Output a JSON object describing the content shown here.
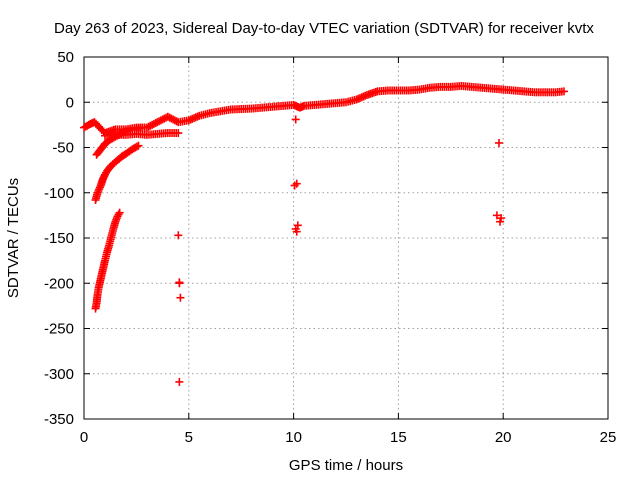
{
  "chart_data": {
    "type": "scatter",
    "title": "Day 263 of 2023, Sidereal Day-to-day VTEC variation (SDTVAR) for receiver kvtx",
    "xlabel": "GPS time / hours",
    "ylabel": "SDTVAR / TECUs",
    "xlim": [
      0,
      25
    ],
    "ylim": [
      -350,
      50
    ],
    "xticks": [
      0,
      5,
      10,
      15,
      20,
      25
    ],
    "xtick_labels": [
      "0",
      "5",
      "10",
      "15",
      "20",
      "25"
    ],
    "yticks": [
      50,
      0,
      -50,
      -100,
      -150,
      -200,
      -250,
      -300,
      -350
    ],
    "ytick_labels": [
      "50",
      "0",
      "-50",
      "-100",
      "-150",
      "-200",
      "-250",
      "-300",
      "-350"
    ],
    "grid": true,
    "marker": "plus",
    "color": "#ff0000",
    "series": [
      {
        "name": "main-track",
        "x": [
          0.0,
          0.3,
          0.5,
          1.0,
          1.5,
          2.0,
          2.5,
          3.0,
          3.5,
          4.0,
          4.5,
          5.0,
          5.5,
          6.0,
          6.5,
          7.0,
          8.0,
          9.0,
          9.5,
          10.0,
          10.3,
          10.5,
          11.0,
          11.5,
          12.0,
          12.5,
          13.0,
          13.5,
          14.0,
          14.5,
          15.0,
          15.5,
          16.0,
          16.5,
          17.0,
          17.5,
          18.0,
          18.5,
          19.0,
          19.5,
          20.0,
          20.5,
          21.0,
          21.5,
          22.0,
          22.5,
          22.9
        ],
        "y": [
          -28,
          -24,
          -22,
          -34,
          -30,
          -30,
          -28,
          -28,
          -22,
          -16,
          -22,
          -20,
          -15,
          -12,
          -10,
          -8,
          -7,
          -5,
          -4,
          -3,
          -6,
          -4,
          -3,
          -2,
          -1,
          0,
          3,
          8,
          12,
          13,
          13,
          13,
          14,
          16,
          17,
          17,
          18,
          17,
          16,
          15,
          14,
          13,
          12,
          11,
          11,
          11,
          12
        ]
      },
      {
        "name": "lower-band",
        "x": [
          1.0,
          1.5,
          2.0,
          2.5,
          3.0,
          3.5,
          4.0,
          4.5
        ],
        "y": [
          -37,
          -36,
          -36,
          -35,
          -36,
          -35,
          -34,
          -34
        ]
      },
      {
        "name": "track-from-minus-60",
        "x": [
          0.6,
          0.8,
          1.0,
          1.2,
          1.5,
          1.8,
          2.0,
          2.3,
          2.6,
          2.8
        ],
        "y": [
          -58,
          -52,
          -46,
          -42,
          -38,
          -34,
          -32,
          -30,
          -29,
          -28
        ]
      },
      {
        "name": "track-from-minus-110",
        "x": [
          0.55,
          0.65,
          0.8,
          0.9,
          1.0,
          1.1,
          1.3,
          1.6,
          1.8,
          2.0,
          2.3,
          2.6
        ],
        "y": [
          -108,
          -100,
          -92,
          -85,
          -80,
          -76,
          -70,
          -64,
          -60,
          -57,
          -52,
          -48
        ]
      },
      {
        "name": "steep-track",
        "x": [
          0.55,
          0.6,
          0.65,
          0.7,
          0.8,
          0.9,
          1.0,
          1.1,
          1.2,
          1.3,
          1.4,
          1.5,
          1.6,
          1.7
        ],
        "y": [
          -228,
          -222,
          -212,
          -205,
          -195,
          -185,
          -175,
          -166,
          -158,
          -149,
          -140,
          -132,
          -126,
          -122
        ]
      },
      {
        "name": "isolated-points",
        "x": [
          4.5,
          4.55,
          4.55,
          4.6,
          4.55,
          10.1,
          10.15,
          10.05,
          10.2,
          10.1,
          10.15,
          19.8,
          19.9,
          19.85,
          19.7
        ],
        "y": [
          -147,
          -199,
          -200,
          -216,
          -309,
          -19,
          -90,
          -92,
          -136,
          -140,
          -143,
          -45,
          -128,
          -132,
          -125
        ]
      }
    ]
  }
}
